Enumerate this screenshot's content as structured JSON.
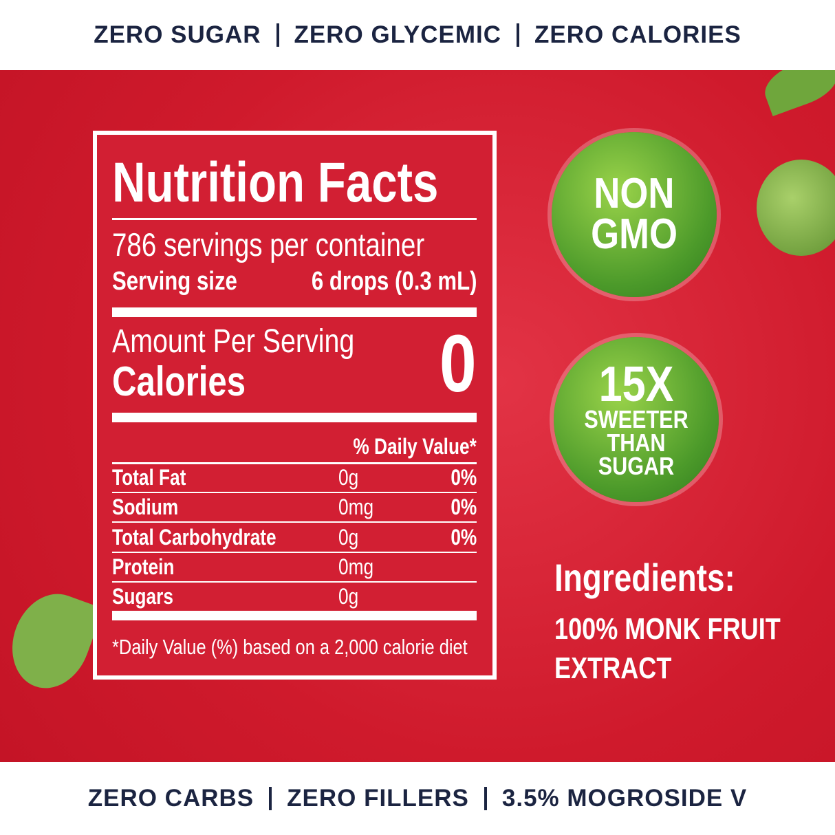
{
  "top_banner": [
    "ZERO SUGAR",
    "ZERO GLYCEMIC",
    "ZERO CALORIES"
  ],
  "nutrition_facts": {
    "title": "Nutrition Facts",
    "servings": "786 servings per container",
    "serving_size_label": "Serving size",
    "serving_size": "6 drops (0.3 mL)",
    "amount_per_serving": "Amount Per Serving",
    "calories_label": "Calories",
    "calories": 0,
    "daily_value_header": "% Daily Value*",
    "rows": [
      [
        "Total Fat",
        "0g",
        "0%"
      ],
      [
        "Sodium",
        "0mg",
        "0%"
      ],
      [
        "Total Carbohydrate",
        "0g",
        "0%"
      ],
      [
        "Protein",
        "0mg"
      ],
      [
        "Sugars",
        "0g"
      ]
    ],
    "footnote": "*Daily Value (%) based on a 2,000 calorie diet"
  },
  "badges": [
    {
      "lines": [
        "NON",
        "GMO"
      ]
    },
    {
      "lines": [
        "15X",
        "SWEETER",
        "THAN",
        "SUGAR"
      ]
    }
  ],
  "ingredients": {
    "title": "Ingredients:",
    "lines": [
      "100% MONK FRUIT",
      "EXTRACT"
    ]
  },
  "bottom_banner": [
    "ZERO CARBS",
    "ZERO FILLERS",
    "3.5% MOGROSIDE V"
  ]
}
